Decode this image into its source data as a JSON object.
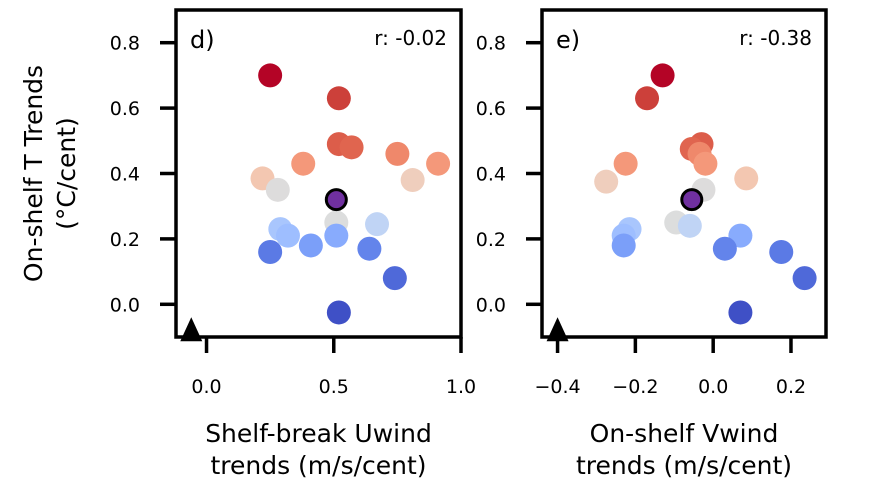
{
  "chart_data": [
    {
      "type": "scatter",
      "panel_label": "d)",
      "annotation": "r: -0.02",
      "xlabel": [
        "Shelf-break Uwind",
        "trends (m/s/cent)"
      ],
      "ylabel": [
        "On-shelf T Trends",
        "(°C/cent)"
      ],
      "xlim": [
        -0.12,
        1.0
      ],
      "ylim": [
        -0.1,
        0.9
      ],
      "xticks": [
        0.0,
        0.5,
        1.0
      ],
      "xtick_labels": [
        "0.0",
        "0.5",
        "1.0"
      ],
      "yticks": [
        0.0,
        0.2,
        0.4,
        0.6,
        0.8
      ],
      "ytick_labels": [
        "0.0",
        "0.2",
        "0.4",
        "0.6",
        "0.8"
      ],
      "grid": false,
      "legend": "none",
      "marker_triangle": {
        "x": -0.06,
        "y": -0.07,
        "color": "#000000"
      },
      "highlight_point": {
        "x": 0.51,
        "y": 0.32,
        "color": "#7030a0"
      },
      "points": [
        {
          "x": 0.25,
          "y": 0.7,
          "color": "#b40426"
        },
        {
          "x": 0.52,
          "y": 0.63,
          "color": "#cc403a"
        },
        {
          "x": 0.52,
          "y": 0.49,
          "color": "#dc5d4a"
        },
        {
          "x": 0.57,
          "y": 0.48,
          "color": "#e0654f"
        },
        {
          "x": 0.75,
          "y": 0.46,
          "color": "#ef886b"
        },
        {
          "x": 0.91,
          "y": 0.43,
          "color": "#f4987a"
        },
        {
          "x": 0.38,
          "y": 0.43,
          "color": "#f4987a"
        },
        {
          "x": 0.22,
          "y": 0.385,
          "color": "#f3c7b1"
        },
        {
          "x": 0.81,
          "y": 0.38,
          "color": "#efcebd"
        },
        {
          "x": 0.28,
          "y": 0.35,
          "color": "#dddcdc"
        },
        {
          "x": 0.51,
          "y": 0.25,
          "color": "#dcdddd"
        },
        {
          "x": 0.67,
          "y": 0.245,
          "color": "#c0d4f5"
        },
        {
          "x": 0.29,
          "y": 0.23,
          "color": "#a9c6fd"
        },
        {
          "x": 0.32,
          "y": 0.21,
          "color": "#9ebeff"
        },
        {
          "x": 0.51,
          "y": 0.21,
          "color": "#88abfd"
        },
        {
          "x": 0.41,
          "y": 0.18,
          "color": "#7b9ff9"
        },
        {
          "x": 0.64,
          "y": 0.17,
          "color": "#6384eb"
        },
        {
          "x": 0.25,
          "y": 0.16,
          "color": "#5b7ae5"
        },
        {
          "x": 0.74,
          "y": 0.08,
          "color": "#4f69d9"
        },
        {
          "x": 0.52,
          "y": -0.025,
          "color": "#3f50c6"
        }
      ]
    },
    {
      "type": "scatter",
      "panel_label": "e)",
      "annotation": "r: -0.38",
      "xlabel": [
        "On-shelf Vwind",
        "trends (m/s/cent)"
      ],
      "ylabel": [],
      "xlim": [
        -0.44,
        0.29
      ],
      "ylim": [
        -0.1,
        0.9
      ],
      "xticks": [
        -0.4,
        -0.2,
        0.0,
        0.2
      ],
      "xtick_labels": [
        "−0.4",
        "−0.2",
        "0.0",
        "0.2"
      ],
      "yticks": [
        0.0,
        0.2,
        0.4,
        0.6,
        0.8
      ],
      "ytick_labels": [
        "0.0",
        "0.2",
        "0.4",
        "0.6",
        "0.8"
      ],
      "grid": false,
      "legend": "none",
      "marker_triangle": {
        "x": -0.4,
        "y": -0.07,
        "color": "#000000"
      },
      "highlight_point": {
        "x": -0.055,
        "y": 0.32,
        "color": "#7030a0"
      },
      "points": [
        {
          "x": -0.13,
          "y": 0.7,
          "color": "#b40426"
        },
        {
          "x": -0.17,
          "y": 0.63,
          "color": "#cc403a"
        },
        {
          "x": -0.03,
          "y": 0.49,
          "color": "#dc5d4a"
        },
        {
          "x": -0.055,
          "y": 0.475,
          "color": "#e0654f"
        },
        {
          "x": -0.035,
          "y": 0.46,
          "color": "#ef886b"
        },
        {
          "x": -0.02,
          "y": 0.43,
          "color": "#f4987a"
        },
        {
          "x": -0.225,
          "y": 0.43,
          "color": "#f4987a"
        },
        {
          "x": 0.085,
          "y": 0.385,
          "color": "#f3c7b1"
        },
        {
          "x": -0.275,
          "y": 0.375,
          "color": "#efcebd"
        },
        {
          "x": -0.025,
          "y": 0.35,
          "color": "#dddcdc"
        },
        {
          "x": -0.095,
          "y": 0.25,
          "color": "#dcdddd"
        },
        {
          "x": -0.06,
          "y": 0.24,
          "color": "#c0d4f5"
        },
        {
          "x": -0.215,
          "y": 0.23,
          "color": "#a9c6fd"
        },
        {
          "x": -0.23,
          "y": 0.21,
          "color": "#9ebeff"
        },
        {
          "x": 0.07,
          "y": 0.21,
          "color": "#88abfd"
        },
        {
          "x": -0.23,
          "y": 0.18,
          "color": "#7b9ff9"
        },
        {
          "x": 0.03,
          "y": 0.17,
          "color": "#6384eb"
        },
        {
          "x": 0.175,
          "y": 0.16,
          "color": "#5b7ae5"
        },
        {
          "x": 0.235,
          "y": 0.08,
          "color": "#4f69d9"
        },
        {
          "x": 0.07,
          "y": -0.025,
          "color": "#3f50c6"
        }
      ]
    }
  ]
}
